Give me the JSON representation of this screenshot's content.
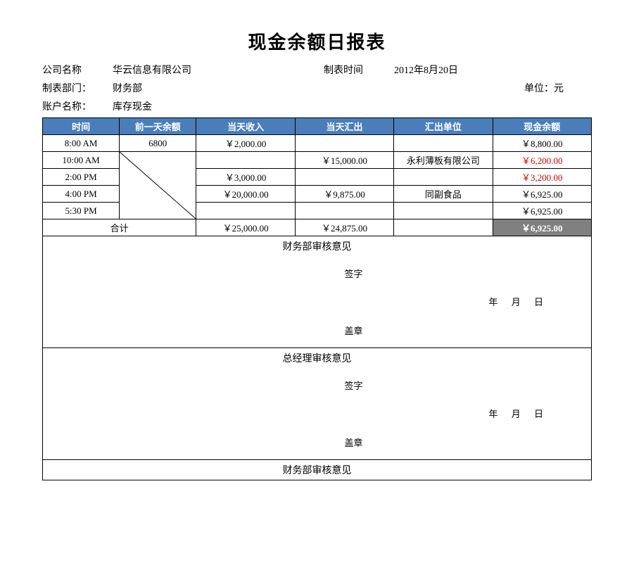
{
  "title": "现金余额日报表",
  "meta": {
    "company_label": "公司名称",
    "company": "华云信息有限公司",
    "report_time_label": "制表时间",
    "report_time": "2012年8月20日",
    "dept_label": "制表部门：",
    "dept": "财务部",
    "unit_label": "单位：元",
    "account_label": "账户名称：",
    "account": "库存现金"
  },
  "headers": [
    "时间",
    "前一天余额",
    "当天收入",
    "当天汇出",
    "汇出单位",
    "现金余额"
  ],
  "rows": [
    {
      "time": "8:00 AM",
      "prev": "6800",
      "income": "￥2,000.00",
      "out": "",
      "out_unit": "",
      "balance": "￥8,800.00",
      "neg": false
    },
    {
      "time": "10:00 AM",
      "prev": "",
      "income": "",
      "out": "￥15,000.00",
      "out_unit": "永利薄板有限公司",
      "balance": "￥6,200.00",
      "neg": true
    },
    {
      "time": "2:00 PM",
      "prev": "",
      "income": "￥3,000.00",
      "out": "",
      "out_unit": "",
      "balance": "￥3,200.00",
      "neg": true
    },
    {
      "time": "4:00 PM",
      "prev": "",
      "income": "￥20,000.00",
      "out": "￥9,875.00",
      "out_unit": "同副食品",
      "balance": "￥6,925.00",
      "neg": false
    },
    {
      "time": "5:30 PM",
      "prev": "",
      "income": "",
      "out": "",
      "out_unit": "",
      "balance": "￥6,925.00",
      "neg": false
    }
  ],
  "total": {
    "label": "合计",
    "income": "￥25,000.00",
    "out": "￥24,875.00",
    "balance": "￥6,925.00"
  },
  "signatures": [
    {
      "title": "财务部审核意见",
      "qz": "签字",
      "date": "年  月  日",
      "gz": "盖章"
    },
    {
      "title": "总经理审核意见",
      "qz": "签字",
      "date": "年  月  日",
      "gz": "盖章"
    },
    {
      "title": "财务部审核意见"
    }
  ],
  "colors": {
    "header_bg": "#4a7ebb",
    "header_fg": "#ffffff",
    "total_bg": "#808080",
    "neg_color": "#d80000",
    "border": "#000000"
  }
}
